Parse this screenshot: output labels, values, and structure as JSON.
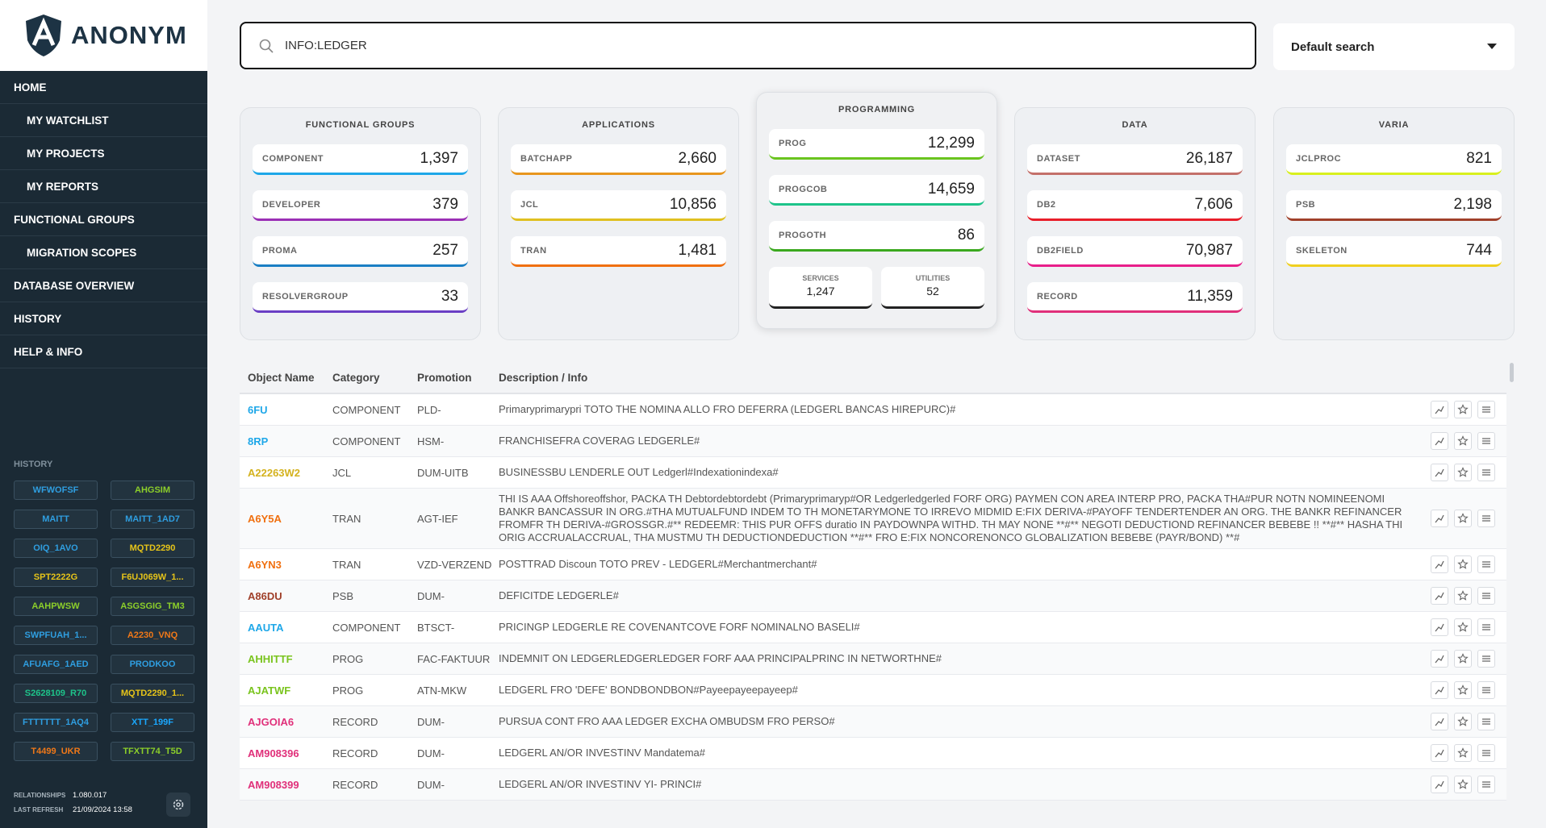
{
  "brand": "ANONYM",
  "nav": [
    {
      "label": "HOME",
      "children": [
        "MY WATCHLIST",
        "MY PROJECTS",
        "MY REPORTS"
      ]
    },
    {
      "label": "FUNCTIONAL GROUPS",
      "children": [
        "MIGRATION SCOPES"
      ]
    },
    {
      "label": "DATABASE OVERVIEW",
      "children": []
    },
    {
      "label": "HISTORY",
      "children": []
    },
    {
      "label": "HELP & INFO",
      "children": []
    }
  ],
  "history": {
    "title": "HISTORY",
    "items": [
      {
        "label": "WFWOFSF",
        "color": "#2f9ee0"
      },
      {
        "label": "AHGSIM",
        "color": "#8ccf2a"
      },
      {
        "label": "MAITT",
        "color": "#2f9ee0"
      },
      {
        "label": "MAITT_1AD7",
        "color": "#2f9ee0"
      },
      {
        "label": "OIQ_1AVO",
        "color": "#2f9ee0"
      },
      {
        "label": "MQTD2290",
        "color": "#e6c419"
      },
      {
        "label": "SPT2222G",
        "color": "#e6c419"
      },
      {
        "label": "F6UJ069W_1...",
        "color": "#e6c419"
      },
      {
        "label": "AAHPWSW",
        "color": "#8ccf2a"
      },
      {
        "label": "ASGSGIG_TM3",
        "color": "#8ccf2a"
      },
      {
        "label": "SWPFUAH_1...",
        "color": "#2f9ee0"
      },
      {
        "label": "A2230_VNQ",
        "color": "#f07818"
      },
      {
        "label": "AFUAFG_1AED",
        "color": "#2f9ee0"
      },
      {
        "label": "PRODKOO",
        "color": "#2f9ee0"
      },
      {
        "label": "S2628109_R70",
        "color": "#1ec48a"
      },
      {
        "label": "MQTD2290_1...",
        "color": "#e6c419"
      },
      {
        "label": "FTTTTTT_1AQ4",
        "color": "#2f9ee0"
      },
      {
        "label": "XTT_199F",
        "color": "#1aa8ff"
      },
      {
        "label": "T4499_UKR",
        "color": "#f07818"
      },
      {
        "label": "TFXTT74_T5D",
        "color": "#8ccf2a"
      }
    ]
  },
  "footer": {
    "relationships_label": "RELATIONSHIPS",
    "relationships": "1.080.017",
    "refresh_label": "LAST REFRESH",
    "refresh": "21/09/2024 13:58"
  },
  "search": {
    "query": "INFO:LEDGER",
    "mode": "Default search"
  },
  "groups": [
    {
      "title": "FUNCTIONAL GROUPS",
      "items": [
        {
          "label": "COMPONENT",
          "value": "1,397",
          "color": "#1ea7e8"
        },
        {
          "label": "DEVELOPER",
          "value": "379",
          "color": "#9b2fb5"
        },
        {
          "label": "PROMA",
          "value": "257",
          "color": "#1a7fc4"
        },
        {
          "label": "RESOLVERGROUP",
          "value": "33",
          "color": "#6a3fc4"
        }
      ]
    },
    {
      "title": "APPLICATIONS",
      "items": [
        {
          "label": "BATCHAPP",
          "value": "2,660",
          "color": "#e8961e"
        },
        {
          "label": "JCL",
          "value": "10,856",
          "color": "#e0c020"
        },
        {
          "label": "TRAN",
          "value": "1,481",
          "color": "#f07010"
        }
      ]
    },
    {
      "title": "PROGRAMMING",
      "items": [
        {
          "label": "PROG",
          "value": "12,299",
          "color": "#6ac41e"
        },
        {
          "label": "PROGCOB",
          "value": "14,659",
          "color": "#1ec48a"
        },
        {
          "label": "PROGOTH",
          "value": "86",
          "color": "#3aa81e"
        }
      ],
      "extras": [
        {
          "label": "SERVICES",
          "value": "1,247"
        },
        {
          "label": "UTILITIES",
          "value": "52"
        }
      ]
    },
    {
      "title": "DATA",
      "items": [
        {
          "label": "DATASET",
          "value": "26,187",
          "color": "#c4706a"
        },
        {
          "label": "DB2",
          "value": "7,606",
          "color": "#e81e2a"
        },
        {
          "label": "DB2FIELD",
          "value": "70,987",
          "color": "#e81e8a"
        },
        {
          "label": "RECORD",
          "value": "11,359",
          "color": "#e0307a"
        }
      ]
    },
    {
      "title": "VARIA",
      "items": [
        {
          "label": "JCLPROC",
          "value": "821",
          "color": "#d8f01e"
        },
        {
          "label": "PSB",
          "value": "2,198",
          "color": "#a0402a"
        },
        {
          "label": "SKELETON",
          "value": "744",
          "color": "#f0d020"
        }
      ]
    }
  ],
  "table": {
    "headers": [
      "Object Name",
      "Category",
      "Promotion",
      "Description / Info"
    ],
    "rows": [
      {
        "name": "6FU",
        "category": "COMPONENT",
        "promotion": "PLD-",
        "description": "Primaryprimarypri TOTO THE NOMINA ALLO FRO DEFERRA (LEDGERL BANCAS HIREPURC)#",
        "color": "#1ea7e8"
      },
      {
        "name": "8RP",
        "category": "COMPONENT",
        "promotion": "HSM-",
        "description": "FRANCHISEFRA COVERAG LEDGERLE#",
        "color": "#1ea7e8"
      },
      {
        "name": "A22263W2",
        "category": "JCL",
        "promotion": "DUM-UITB",
        "description": "BUSINESSBU LENDERLE OUT Ledgerl#Indexationindexa#",
        "color": "#d4b21e"
      },
      {
        "name": "A6Y5A",
        "category": "TRAN",
        "promotion": "AGT-IEF",
        "description": "THI IS AAA Offshoreoffshor, PACKA TH Debtordebtordebt (Primaryprimaryp#OR Ledgerledgerled FORF ORG) PAYMEN CON AREA INTERP PRO, PACKA THA#PUR NOTN NOMINEENOMI BANKR BANCASSUR IN ORG.#THA MUTUALFUND INDEM TO TH MONETARYMONE TO IRREVO MIDMID E:FIX DERIVA-#PAYOFF TENDERTENDER AN ORG. THE BANKR REFINANCER FROMFR TH DERIVA-#GROSSGR.#** REDEEMR: THIS PUR OFFS duratio IN PAYDOWNPA WITHD. TH MAY NONE **#** NEGOTI DEDUCTIOND REFINANCER BEBEBE !! **#** HASHA THI ORIG ACCRUALACCRUAL, THA MUSTMU TH DEDUCTIONDEDUCTION **#** FRO E:FIX NONCORENONCO GLOBALIZATION BEBEBE (PAYR/BOND) **#",
        "color": "#f07010"
      },
      {
        "name": "A6YN3",
        "category": "TRAN",
        "promotion": "VZD-VERZEND",
        "description": "POSTTRAD Discoun TOTO PREV - LEDGERL#Merchantmerchant#",
        "color": "#f07010"
      },
      {
        "name": "A86DU",
        "category": "PSB",
        "promotion": "DUM-",
        "description": "DEFICITDE LEDGERLE#",
        "color": "#a0402a"
      },
      {
        "name": "AAUTA",
        "category": "COMPONENT",
        "promotion": "BTSCT-",
        "description": "PRICINGP LEDGERLE RE COVENANTCOVE FORF NOMINALNO BASELI#",
        "color": "#1ea7e8"
      },
      {
        "name": "AHHITTF",
        "category": "PROG",
        "promotion": "FAC-FAKTUUR",
        "description": "INDEMNIT ON LEDGERLEDGERLEDGER FORF AAA PRINCIPALPRINC IN NETWORTHNE#",
        "color": "#7ac41e"
      },
      {
        "name": "AJATWF",
        "category": "PROG",
        "promotion": "ATN-MKW",
        "description": "LEDGERL FRO 'DEFE' BONDBONDBON#Payeepayeepayeep#",
        "color": "#7ac41e"
      },
      {
        "name": "AJGOIA6",
        "category": "RECORD",
        "promotion": "DUM-",
        "description": "PURSUA CONT FRO AAA LEDGER EXCHA OMBUDSM FRO PERSO#",
        "color": "#e0307a"
      },
      {
        "name": "AM908396",
        "category": "RECORD",
        "promotion": "DUM-",
        "description": "LEDGERL AN/OR INVESTINV Mandatema#",
        "color": "#e0307a"
      },
      {
        "name": "AM908399",
        "category": "RECORD",
        "promotion": "DUM-",
        "description": "LEDGERL AN/OR INVESTINV YI- PRINCI#",
        "color": "#e0307a"
      }
    ]
  }
}
